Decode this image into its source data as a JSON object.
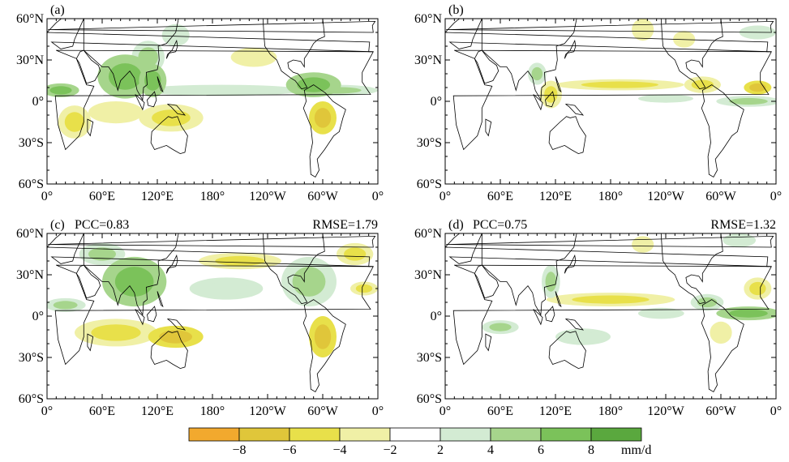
{
  "chart_data": [
    {
      "type": "heatmap",
      "panel_label": "(a)",
      "pcc_text": "",
      "rmse_text": "",
      "lat_ticks": [
        "60°N",
        "30°N",
        "0°",
        "30°S",
        "60°S"
      ],
      "lon_ticks": [
        "0°",
        "60°E",
        "120°E",
        "180°",
        "120°W",
        "60°W",
        "0°"
      ],
      "ylim": [
        -60,
        60
      ],
      "xlim": [
        0,
        360
      ],
      "anomaly_regions": [
        {
          "lon": 85,
          "lat": 18,
          "rx": 30,
          "ry": 16,
          "value": 6
        },
        {
          "lon": 115,
          "lat": 15,
          "rx": 15,
          "ry": 12,
          "value": 7
        },
        {
          "lon": 110,
          "lat": 32,
          "rx": 18,
          "ry": 12,
          "value": 4
        },
        {
          "lon": 15,
          "lat": 8,
          "rx": 20,
          "ry": 5,
          "value": 6
        },
        {
          "lon": 290,
          "lat": 12,
          "rx": 30,
          "ry": 9,
          "value": 6
        },
        {
          "lon": 315,
          "lat": 8,
          "rx": 45,
          "ry": 4,
          "value": 4
        },
        {
          "lon": 190,
          "lat": 8,
          "rx": 90,
          "ry": 4,
          "value": 3
        },
        {
          "lon": 30,
          "lat": -15,
          "rx": 18,
          "ry": 12,
          "value": -4
        },
        {
          "lon": 75,
          "lat": -8,
          "rx": 30,
          "ry": 8,
          "value": -3
        },
        {
          "lon": 135,
          "lat": -12,
          "rx": 35,
          "ry": 10,
          "value": -5
        },
        {
          "lon": 300,
          "lat": -12,
          "rx": 15,
          "ry": 12,
          "value": -7
        },
        {
          "lon": 225,
          "lat": 32,
          "rx": 25,
          "ry": 7,
          "value": -3
        },
        {
          "lon": 140,
          "lat": 48,
          "rx": 15,
          "ry": 8,
          "value": 3
        }
      ]
    },
    {
      "type": "heatmap",
      "panel_label": "(b)",
      "pcc_text": "",
      "rmse_text": "",
      "lat_ticks": [
        "60°N",
        "30°N",
        "0°",
        "30°S",
        "60°S"
      ],
      "lon_ticks": [
        "0°",
        "60°E",
        "120°E",
        "180°",
        "120°W",
        "60°W",
        "0°"
      ],
      "ylim": [
        -60,
        60
      ],
      "xlim": [
        0,
        360
      ],
      "anomaly_regions": [
        {
          "lon": 190,
          "lat": 12,
          "rx": 70,
          "ry": 4,
          "value": -4
        },
        {
          "lon": 280,
          "lat": 12,
          "rx": 20,
          "ry": 6,
          "value": -5
        },
        {
          "lon": 340,
          "lat": 10,
          "rx": 15,
          "ry": 5,
          "value": -7
        },
        {
          "lon": 330,
          "lat": 0,
          "rx": 35,
          "ry": 4,
          "value": 5
        },
        {
          "lon": 240,
          "lat": 2,
          "rx": 30,
          "ry": 3,
          "value": 3
        },
        {
          "lon": 100,
          "lat": 20,
          "rx": 10,
          "ry": 8,
          "value": 4
        },
        {
          "lon": 115,
          "lat": 5,
          "rx": 12,
          "ry": 10,
          "value": -4
        },
        {
          "lon": 215,
          "lat": 52,
          "rx": 12,
          "ry": 8,
          "value": -3
        },
        {
          "lon": 260,
          "lat": 45,
          "rx": 12,
          "ry": 6,
          "value": -3
        },
        {
          "lon": 340,
          "lat": 50,
          "rx": 20,
          "ry": 5,
          "value": 3
        }
      ]
    },
    {
      "type": "heatmap",
      "panel_label": "(c)",
      "pcc_text": "PCC=0.83",
      "rmse_text": "RMSE=1.79",
      "lat_ticks": [
        "60°N",
        "30°N",
        "0°",
        "30°S",
        "60°S"
      ],
      "lon_ticks": [
        "0°",
        "60°E",
        "120°E",
        "180°",
        "120°W",
        "60°W",
        "0°"
      ],
      "ylim": [
        -60,
        60
      ],
      "xlim": [
        0,
        360
      ],
      "anomaly_regions": [
        {
          "lon": 95,
          "lat": 25,
          "rx": 35,
          "ry": 18,
          "value": 6
        },
        {
          "lon": 60,
          "lat": 45,
          "rx": 25,
          "ry": 8,
          "value": 4
        },
        {
          "lon": 285,
          "lat": 25,
          "rx": 30,
          "ry": 18,
          "value": 5
        },
        {
          "lon": 20,
          "lat": 8,
          "rx": 22,
          "ry": 5,
          "value": 5
        },
        {
          "lon": 195,
          "lat": 20,
          "rx": 40,
          "ry": 8,
          "value": 3
        },
        {
          "lon": 210,
          "lat": 40,
          "rx": 45,
          "ry": 6,
          "value": -4
        },
        {
          "lon": 335,
          "lat": 45,
          "rx": 20,
          "ry": 8,
          "value": -4
        },
        {
          "lon": 75,
          "lat": -12,
          "rx": 45,
          "ry": 10,
          "value": -4
        },
        {
          "lon": 140,
          "lat": -15,
          "rx": 30,
          "ry": 8,
          "value": -6
        },
        {
          "lon": 300,
          "lat": -15,
          "rx": 15,
          "ry": 15,
          "value": -7
        },
        {
          "lon": 345,
          "lat": 20,
          "rx": 15,
          "ry": 5,
          "value": -4
        }
      ]
    },
    {
      "type": "heatmap",
      "panel_label": "(d)",
      "pcc_text": "PCC=0.75",
      "rmse_text": "RMSE=1.32",
      "lat_ticks": [
        "60°N",
        "30°N",
        "0°",
        "30°S",
        "60°S"
      ],
      "lon_ticks": [
        "0°",
        "60°E",
        "120°E",
        "180°",
        "120°W",
        "60°W",
        "0°"
      ],
      "ylim": [
        -60,
        60
      ],
      "xlim": [
        0,
        360
      ],
      "anomaly_regions": [
        {
          "lon": 180,
          "lat": 12,
          "rx": 70,
          "ry": 5,
          "value": -4
        },
        {
          "lon": 285,
          "lat": 10,
          "rx": 18,
          "ry": 6,
          "value": 5
        },
        {
          "lon": 330,
          "lat": 2,
          "rx": 35,
          "ry": 5,
          "value": 6
        },
        {
          "lon": 235,
          "lat": 2,
          "rx": 25,
          "ry": 4,
          "value": 3
        },
        {
          "lon": 60,
          "lat": -8,
          "rx": 20,
          "ry": 5,
          "value": 5
        },
        {
          "lon": 115,
          "lat": 25,
          "rx": 10,
          "ry": 12,
          "value": 5
        },
        {
          "lon": 340,
          "lat": 20,
          "rx": 15,
          "ry": 8,
          "value": -5
        },
        {
          "lon": 150,
          "lat": -15,
          "rx": 30,
          "ry": 6,
          "value": 3
        },
        {
          "lon": 300,
          "lat": -12,
          "rx": 12,
          "ry": 8,
          "value": -3
        },
        {
          "lon": 215,
          "lat": 52,
          "rx": 12,
          "ry": 6,
          "value": -3
        },
        {
          "lon": 320,
          "lat": 55,
          "rx": 18,
          "ry": 5,
          "value": 3
        }
      ]
    }
  ],
  "colorbar": {
    "tick_labels": [
      "−8",
      "−6",
      "−4",
      "−2",
      "2",
      "4",
      "6",
      "8"
    ],
    "unit": "mm/d",
    "colors": [
      "#f2a92e",
      "#e0c63a",
      "#e8e04a",
      "#f0f0a6",
      "#ffffff",
      "#d3ebd3",
      "#a6d58c",
      "#7bc25a",
      "#5aa83e"
    ]
  }
}
